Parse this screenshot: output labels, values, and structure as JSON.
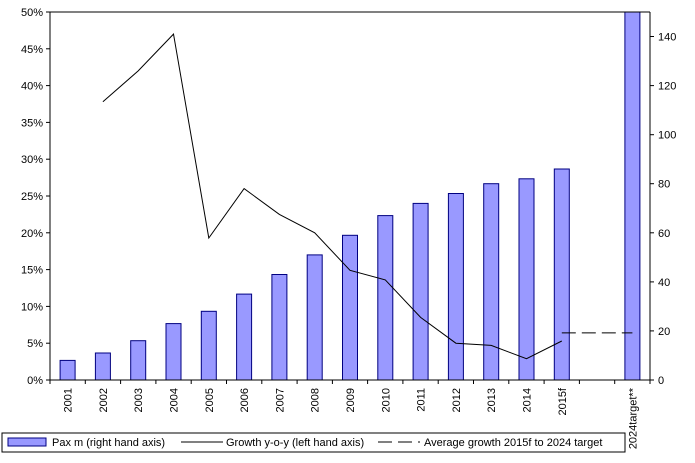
{
  "chart_data": {
    "type": "bar",
    "categories": [
      "2001",
      "2002",
      "2003",
      "2004",
      "2005",
      "2006",
      "2007",
      "2008",
      "2009",
      "2010",
      "2011",
      "2012",
      "2013",
      "2014",
      "2015f",
      "",
      "2024target**"
    ],
    "series": [
      {
        "name": "Pax m (right hand axis)",
        "type": "bar",
        "axis": "right",
        "color": "#9999ff",
        "edge_color": "#000080",
        "values": [
          8,
          11,
          16,
          23,
          28,
          35,
          43,
          51,
          59,
          67,
          72,
          76,
          80,
          82,
          86,
          null,
          150
        ]
      },
      {
        "name": "Growth y-o-y (left hand axis)",
        "type": "line",
        "axis": "left",
        "color": "#000000",
        "values": [
          null,
          0.378,
          0.42,
          0.47,
          0.193,
          0.26,
          0.225,
          0.2,
          0.149,
          0.136,
          0.085,
          0.05,
          0.047,
          0.029,
          0.053,
          null,
          null
        ]
      },
      {
        "name": "Average growth 2015f to 2024 target",
        "type": "dashed-line",
        "axis": "left",
        "color": "#000000",
        "values": [
          null,
          null,
          null,
          null,
          null,
          null,
          null,
          null,
          null,
          null,
          null,
          null,
          null,
          null,
          0.064,
          0.064,
          0.064
        ]
      }
    ],
    "left_axis": {
      "min": 0,
      "max": 0.5,
      "step": 0.05,
      "tick_labels": [
        "0%",
        "5%",
        "10%",
        "15%",
        "20%",
        "25%",
        "30%",
        "35%",
        "40%",
        "45%",
        "50%"
      ]
    },
    "right_axis": {
      "min": 0,
      "max": 150,
      "step": 20,
      "tick_labels": [
        "0",
        "20",
        "40",
        "60",
        "80",
        "100",
        "120",
        "140"
      ]
    },
    "grid": false,
    "legend_position": "bottom",
    "title": "",
    "xlabel": "",
    "ylabel": ""
  }
}
